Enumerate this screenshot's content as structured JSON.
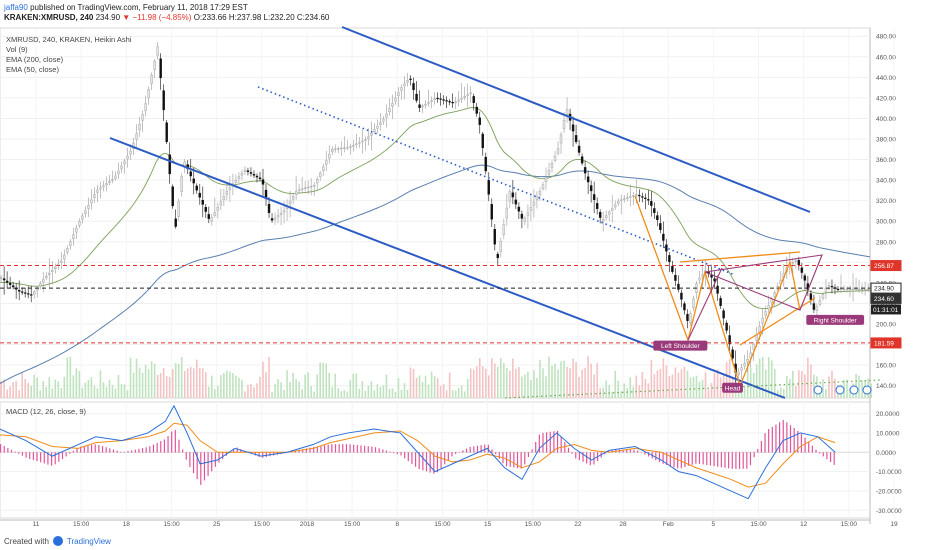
{
  "header": {
    "user": "jaffa90",
    "published_text": "published on TradingView.com, February 11, 2018 17:29 EST",
    "symbol": "KRAKEN:XMRUSD, 240",
    "last": "234.90",
    "change": "▼ −11.98 (−4.85%)",
    "ohlc": "O:233.66 H:237.98 L:232.20 C:234.60"
  },
  "legends": {
    "title": "XMRUSD, 240, KRAKEN, Heikin Ashi",
    "vol": "Vol (9)",
    "ema200": "EMA (200, close)",
    "ema50": "EMA (50, close)",
    "macd": "MACD (12, 26, close, 9)"
  },
  "footer": {
    "created": "Created with",
    "brand": "TradingView"
  },
  "colors": {
    "channel": "#2c5bc4",
    "ema200": "#5b7fb0",
    "ema50": "#7aa05a",
    "orange": "#f08c1a",
    "purple": "#9b3a7a",
    "red": "#e0352b",
    "macd_line": "#2a6fdb",
    "signal_line": "#f08c1a",
    "hist": "#e0559a"
  },
  "chart_data": [
    {
      "type": "candlestick",
      "title": "XMRUSD, 240, KRAKEN, Heikin Ashi",
      "y_ticks": [
        140,
        160,
        180,
        200,
        220,
        240,
        260,
        280,
        300,
        320,
        340,
        360,
        380,
        400,
        420,
        440,
        460,
        480
      ],
      "ylim": [
        128,
        488
      ],
      "x_ticks": [
        "11",
        "15:00",
        "18",
        "15:00",
        "25",
        "15:00",
        "2018",
        "15:00",
        "8",
        "15:00",
        "15",
        "15:00",
        "22",
        "28",
        "Feb",
        "5",
        "15:00",
        "12",
        "15:00",
        "19"
      ],
      "price_labels": [
        {
          "value": 256.87,
          "text": "256.87",
          "color": "#e0352b"
        },
        {
          "value": 234.9,
          "text": "234.90",
          "color": "#222222"
        },
        {
          "value": 234.6,
          "text": "234.60",
          "color": "#ffffff"
        },
        {
          "value": 181.59,
          "text": "181.59",
          "color": "#e0352b"
        }
      ],
      "countdown": "01:31:01",
      "horizontal_levels": [
        256.87,
        234.9,
        181.59
      ],
      "price_path": [
        [
          0.0,
          245
        ],
        [
          0.02,
          232
        ],
        [
          0.035,
          228
        ],
        [
          0.05,
          245
        ],
        [
          0.07,
          262
        ],
        [
          0.09,
          300
        ],
        [
          0.11,
          330
        ],
        [
          0.13,
          342
        ],
        [
          0.15,
          370
        ],
        [
          0.165,
          410
        ],
        [
          0.18,
          470
        ],
        [
          0.19,
          380
        ],
        [
          0.2,
          290
        ],
        [
          0.21,
          360
        ],
        [
          0.225,
          330
        ],
        [
          0.24,
          300
        ],
        [
          0.26,
          330
        ],
        [
          0.28,
          350
        ],
        [
          0.3,
          340
        ],
        [
          0.31,
          300
        ],
        [
          0.325,
          310
        ],
        [
          0.34,
          330
        ],
        [
          0.36,
          335
        ],
        [
          0.38,
          370
        ],
        [
          0.4,
          372
        ],
        [
          0.42,
          380
        ],
        [
          0.44,
          400
        ],
        [
          0.46,
          430
        ],
        [
          0.47,
          440
        ],
        [
          0.48,
          410
        ],
        [
          0.5,
          420
        ],
        [
          0.52,
          415
        ],
        [
          0.54,
          425
        ],
        [
          0.55,
          395
        ],
        [
          0.56,
          330
        ],
        [
          0.57,
          260
        ],
        [
          0.585,
          330
        ],
        [
          0.6,
          300
        ],
        [
          0.62,
          330
        ],
        [
          0.64,
          370
        ],
        [
          0.65,
          410
        ],
        [
          0.66,
          380
        ],
        [
          0.67,
          350
        ],
        [
          0.69,
          300
        ],
        [
          0.71,
          320
        ],
        [
          0.73,
          326
        ],
        [
          0.745,
          320
        ],
        [
          0.755,
          300
        ],
        [
          0.77,
          255
        ],
        [
          0.78,
          230
        ],
        [
          0.79,
          200
        ],
        [
          0.8,
          242
        ],
        [
          0.81,
          252
        ],
        [
          0.82,
          242
        ],
        [
          0.835,
          190
        ],
        [
          0.845,
          150
        ],
        [
          0.86,
          168
        ],
        [
          0.875,
          205
        ],
        [
          0.89,
          232
        ],
        [
          0.905,
          258
        ],
        [
          0.915,
          262
        ],
        [
          0.925,
          240
        ],
        [
          0.935,
          212
        ],
        [
          0.95,
          238
        ],
        [
          0.96,
          234
        ]
      ],
      "annotations": [
        {
          "text": "Left Shoulder",
          "x": 0.782,
          "y": 178
        },
        {
          "text": "Head",
          "x": 0.842,
          "y": 137
        },
        {
          "text": "Right Shoulder",
          "x": 0.96,
          "y": 203
        }
      ]
    },
    {
      "type": "line",
      "title": "MACD (12, 26, close, 9)",
      "y_ticks": [
        -30.0,
        -20.0,
        -10.0,
        0.0,
        10.0,
        20.0
      ],
      "y_tick_labels": [
        "-30.0000",
        "-20.0000",
        "-10.0000",
        "0.0000",
        "10.0000",
        "20.0000"
      ],
      "ylim": [
        -34,
        26
      ],
      "macd": [
        [
          0.0,
          12
        ],
        [
          0.03,
          6
        ],
        [
          0.06,
          -2
        ],
        [
          0.09,
          4
        ],
        [
          0.11,
          8
        ],
        [
          0.14,
          6
        ],
        [
          0.17,
          10
        ],
        [
          0.19,
          16
        ],
        [
          0.2,
          24
        ],
        [
          0.215,
          10
        ],
        [
          0.23,
          -6
        ],
        [
          0.25,
          -4
        ],
        [
          0.27,
          2
        ],
        [
          0.3,
          -2
        ],
        [
          0.33,
          0
        ],
        [
          0.36,
          4
        ],
        [
          0.38,
          8
        ],
        [
          0.4,
          10
        ],
        [
          0.43,
          12
        ],
        [
          0.46,
          10
        ],
        [
          0.48,
          0
        ],
        [
          0.5,
          -10
        ],
        [
          0.52,
          -6
        ],
        [
          0.54,
          -2
        ],
        [
          0.56,
          2
        ],
        [
          0.58,
          -8
        ],
        [
          0.6,
          -14
        ],
        [
          0.62,
          2
        ],
        [
          0.64,
          10
        ],
        [
          0.66,
          2
        ],
        [
          0.68,
          -4
        ],
        [
          0.7,
          1
        ],
        [
          0.73,
          3
        ],
        [
          0.76,
          -4
        ],
        [
          0.78,
          -10
        ],
        [
          0.8,
          -12
        ],
        [
          0.82,
          -16
        ],
        [
          0.84,
          -20
        ],
        [
          0.86,
          -24
        ],
        [
          0.88,
          -8
        ],
        [
          0.9,
          6
        ],
        [
          0.92,
          10
        ],
        [
          0.94,
          8
        ],
        [
          0.96,
          0
        ]
      ],
      "signal": [
        [
          0.0,
          9
        ],
        [
          0.03,
          8
        ],
        [
          0.06,
          3
        ],
        [
          0.09,
          2
        ],
        [
          0.11,
          5
        ],
        [
          0.14,
          6
        ],
        [
          0.17,
          8
        ],
        [
          0.19,
          11
        ],
        [
          0.2,
          15
        ],
        [
          0.215,
          14
        ],
        [
          0.23,
          6
        ],
        [
          0.25,
          0
        ],
        [
          0.27,
          0
        ],
        [
          0.3,
          0
        ],
        [
          0.33,
          0
        ],
        [
          0.36,
          2
        ],
        [
          0.38,
          5
        ],
        [
          0.4,
          7
        ],
        [
          0.43,
          10
        ],
        [
          0.46,
          11
        ],
        [
          0.48,
          6
        ],
        [
          0.5,
          -2
        ],
        [
          0.52,
          -5
        ],
        [
          0.54,
          -4
        ],
        [
          0.56,
          -1
        ],
        [
          0.58,
          -3
        ],
        [
          0.6,
          -8
        ],
        [
          0.62,
          -5
        ],
        [
          0.64,
          2
        ],
        [
          0.66,
          4
        ],
        [
          0.68,
          1
        ],
        [
          0.7,
          0
        ],
        [
          0.73,
          2
        ],
        [
          0.76,
          0
        ],
        [
          0.78,
          -4
        ],
        [
          0.8,
          -8
        ],
        [
          0.82,
          -11
        ],
        [
          0.84,
          -14
        ],
        [
          0.86,
          -18
        ],
        [
          0.88,
          -16
        ],
        [
          0.9,
          -6
        ],
        [
          0.92,
          3
        ],
        [
          0.94,
          8
        ],
        [
          0.96,
          5
        ]
      ]
    }
  ]
}
